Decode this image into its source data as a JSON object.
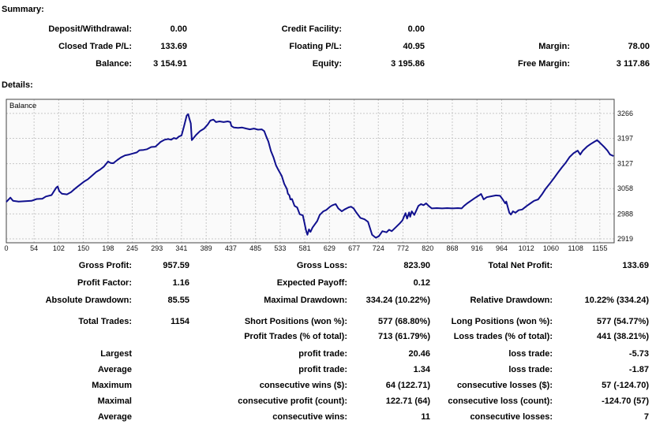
{
  "summary": {
    "heading": "Summary:",
    "rows": [
      [
        "Deposit/Withdrawal:",
        "0.00",
        "Credit Facility:",
        "0.00",
        "",
        ""
      ],
      [
        "Closed Trade P/L:",
        "133.69",
        "Floating P/L:",
        "40.95",
        "Margin:",
        "78.00"
      ],
      [
        "Balance:",
        "3 154.91",
        "Equity:",
        "3 195.86",
        "Free Margin:",
        "3 117.86"
      ]
    ]
  },
  "details": {
    "heading": "Details:",
    "blocks": [
      {
        "rows": [
          [
            "Gross Profit:",
            "957.59",
            "Gross Loss:",
            "823.90",
            "Total Net Profit:",
            "133.69"
          ],
          [
            "Profit Factor:",
            "1.16",
            "Expected Payoff:",
            "0.12",
            "",
            ""
          ],
          [
            "Absolute Drawdown:",
            "85.55",
            "Maximal Drawdown:",
            "334.24 (10.22%)",
            "Relative Drawdown:",
            "10.22% (334.24)"
          ]
        ]
      },
      {
        "rows": [
          [
            "Total Trades:",
            "1154",
            "Short Positions (won %):",
            "577 (68.80%)",
            "Long Positions (won %):",
            "577 (54.77%)"
          ],
          [
            "",
            "",
            "Profit Trades (% of total):",
            "713 (61.79%)",
            "Loss trades (% of total):",
            "441 (38.21%)"
          ]
        ]
      },
      {
        "rows": [
          [
            "Largest",
            "",
            "profit trade:",
            "20.46",
            "loss trade:",
            "-5.73"
          ],
          [
            "Average",
            "",
            "profit trade:",
            "1.34",
            "loss trade:",
            "-1.87"
          ],
          [
            "Maximum",
            "",
            "consecutive wins ($):",
            "64 (122.71)",
            "consecutive losses ($):",
            "57 (-124.70)"
          ],
          [
            "Maximal",
            "",
            "consecutive profit (count):",
            "122.71 (64)",
            "consecutive loss (count):",
            "-124.70 (57)"
          ],
          [
            "Average",
            "",
            "consecutive wins:",
            "11",
            "consecutive losses:",
            "7"
          ]
        ]
      }
    ]
  },
  "chart_data": {
    "type": "line",
    "title": "Balance",
    "series_label": "Balance",
    "xlabel": "",
    "ylabel": "",
    "grid": true,
    "legend_position": "top-left-inside",
    "line_color": "#10108E",
    "plot_bg": "#fafafa",
    "grid_color": "#c8c8c8",
    "border_color": "#444444",
    "tick_color": "#111111",
    "x_ticks": [
      0,
      54,
      102,
      150,
      198,
      245,
      293,
      341,
      389,
      437,
      485,
      533,
      581,
      629,
      677,
      724,
      772,
      820,
      868,
      916,
      964,
      1012,
      1060,
      1108,
      1155
    ],
    "y_ticks": [
      2919,
      2988,
      3058,
      3127,
      3197,
      3266
    ],
    "x_range": [
      0,
      1183
    ],
    "y_range": [
      2908,
      3305
    ],
    "points": [
      [
        0,
        3021
      ],
      [
        8,
        3033
      ],
      [
        13,
        3024
      ],
      [
        24,
        3022
      ],
      [
        49,
        3024
      ],
      [
        59,
        3029
      ],
      [
        70,
        3030
      ],
      [
        77,
        3036
      ],
      [
        88,
        3040
      ],
      [
        97,
        3060
      ],
      [
        100,
        3064
      ],
      [
        103,
        3051
      ],
      [
        108,
        3044
      ],
      [
        118,
        3042
      ],
      [
        126,
        3048
      ],
      [
        134,
        3058
      ],
      [
        141,
        3066
      ],
      [
        152,
        3078
      ],
      [
        159,
        3084
      ],
      [
        167,
        3094
      ],
      [
        175,
        3104
      ],
      [
        182,
        3110
      ],
      [
        190,
        3119
      ],
      [
        198,
        3133
      ],
      [
        203,
        3129
      ],
      [
        208,
        3128
      ],
      [
        216,
        3137
      ],
      [
        223,
        3144
      ],
      [
        231,
        3150
      ],
      [
        239,
        3152
      ],
      [
        246,
        3155
      ],
      [
        254,
        3158
      ],
      [
        259,
        3164
      ],
      [
        267,
        3165
      ],
      [
        274,
        3167
      ],
      [
        282,
        3173
      ],
      [
        290,
        3174
      ],
      [
        295,
        3180
      ],
      [
        300,
        3187
      ],
      [
        308,
        3193
      ],
      [
        315,
        3195
      ],
      [
        321,
        3193
      ],
      [
        326,
        3198
      ],
      [
        331,
        3196
      ],
      [
        336,
        3202
      ],
      [
        341,
        3205
      ],
      [
        346,
        3231
      ],
      [
        351,
        3260
      ],
      [
        354,
        3264
      ],
      [
        356,
        3253
      ],
      [
        359,
        3238
      ],
      [
        361,
        3192
      ],
      [
        364,
        3197
      ],
      [
        369,
        3206
      ],
      [
        377,
        3217
      ],
      [
        385,
        3224
      ],
      [
        392,
        3235
      ],
      [
        397,
        3246
      ],
      [
        403,
        3249
      ],
      [
        408,
        3242
      ],
      [
        415,
        3244
      ],
      [
        423,
        3242
      ],
      [
        431,
        3244
      ],
      [
        436,
        3242
      ],
      [
        438,
        3231
      ],
      [
        443,
        3227
      ],
      [
        451,
        3226
      ],
      [
        459,
        3227
      ],
      [
        467,
        3224
      ],
      [
        474,
        3222
      ],
      [
        482,
        3224
      ],
      [
        490,
        3221
      ],
      [
        497,
        3222
      ],
      [
        502,
        3217
      ],
      [
        506,
        3202
      ],
      [
        510,
        3188
      ],
      [
        515,
        3162
      ],
      [
        520,
        3144
      ],
      [
        525,
        3122
      ],
      [
        530,
        3108
      ],
      [
        536,
        3093
      ],
      [
        541,
        3071
      ],
      [
        546,
        3057
      ],
      [
        548,
        3044
      ],
      [
        551,
        3039
      ],
      [
        553,
        3028
      ],
      [
        556,
        3029
      ],
      [
        561,
        3010
      ],
      [
        566,
        3006
      ],
      [
        571,
        2987
      ],
      [
        577,
        2984
      ],
      [
        580,
        2965
      ],
      [
        583,
        2944
      ],
      [
        586,
        2930
      ],
      [
        589,
        2945
      ],
      [
        592,
        2938
      ],
      [
        596,
        2950
      ],
      [
        600,
        2958
      ],
      [
        605,
        2968
      ],
      [
        610,
        2985
      ],
      [
        617,
        2995
      ],
      [
        623,
        2999
      ],
      [
        630,
        3008
      ],
      [
        635,
        3012
      ],
      [
        641,
        3015
      ],
      [
        646,
        3003
      ],
      [
        653,
        2995
      ],
      [
        658,
        3000
      ],
      [
        666,
        3006
      ],
      [
        671,
        3008
      ],
      [
        676,
        3003
      ],
      [
        681,
        2992
      ],
      [
        689,
        2977
      ],
      [
        697,
        2973
      ],
      [
        704,
        2966
      ],
      [
        712,
        2930
      ],
      [
        719,
        2922
      ],
      [
        725,
        2926
      ],
      [
        732,
        2940
      ],
      [
        740,
        2937
      ],
      [
        745,
        2944
      ],
      [
        750,
        2940
      ],
      [
        758,
        2951
      ],
      [
        766,
        2962
      ],
      [
        771,
        2970
      ],
      [
        777,
        2990
      ],
      [
        780,
        2975
      ],
      [
        784,
        2992
      ],
      [
        786,
        2980
      ],
      [
        789,
        2995
      ],
      [
        794,
        2985
      ],
      [
        802,
        3010
      ],
      [
        807,
        3015
      ],
      [
        812,
        3012
      ],
      [
        817,
        3017
      ],
      [
        822,
        3010
      ],
      [
        828,
        3003
      ],
      [
        838,
        3004
      ],
      [
        848,
        3003
      ],
      [
        858,
        3004
      ],
      [
        868,
        3003
      ],
      [
        879,
        3004
      ],
      [
        886,
        3003
      ],
      [
        891,
        3010
      ],
      [
        897,
        3017
      ],
      [
        904,
        3024
      ],
      [
        912,
        3032
      ],
      [
        920,
        3039
      ],
      [
        924,
        3043
      ],
      [
        929,
        3028
      ],
      [
        935,
        3034
      ],
      [
        945,
        3037
      ],
      [
        953,
        3039
      ],
      [
        961,
        3038
      ],
      [
        966,
        3028
      ],
      [
        971,
        3017
      ],
      [
        973,
        3022
      ],
      [
        979,
        2991
      ],
      [
        982,
        2986
      ],
      [
        986,
        2995
      ],
      [
        991,
        2991
      ],
      [
        997,
        2998
      ],
      [
        1004,
        3000
      ],
      [
        1012,
        3009
      ],
      [
        1020,
        3017
      ],
      [
        1027,
        3024
      ],
      [
        1035,
        3028
      ],
      [
        1043,
        3043
      ],
      [
        1050,
        3058
      ],
      [
        1058,
        3072
      ],
      [
        1066,
        3087
      ],
      [
        1073,
        3101
      ],
      [
        1081,
        3116
      ],
      [
        1089,
        3130
      ],
      [
        1096,
        3145
      ],
      [
        1104,
        3156
      ],
      [
        1112,
        3163
      ],
      [
        1117,
        3152
      ],
      [
        1122,
        3163
      ],
      [
        1130,
        3174
      ],
      [
        1137,
        3181
      ],
      [
        1145,
        3188
      ],
      [
        1150,
        3192
      ],
      [
        1155,
        3185
      ],
      [
        1163,
        3174
      ],
      [
        1170,
        3163
      ],
      [
        1175,
        3152
      ],
      [
        1182,
        3148
      ]
    ]
  }
}
